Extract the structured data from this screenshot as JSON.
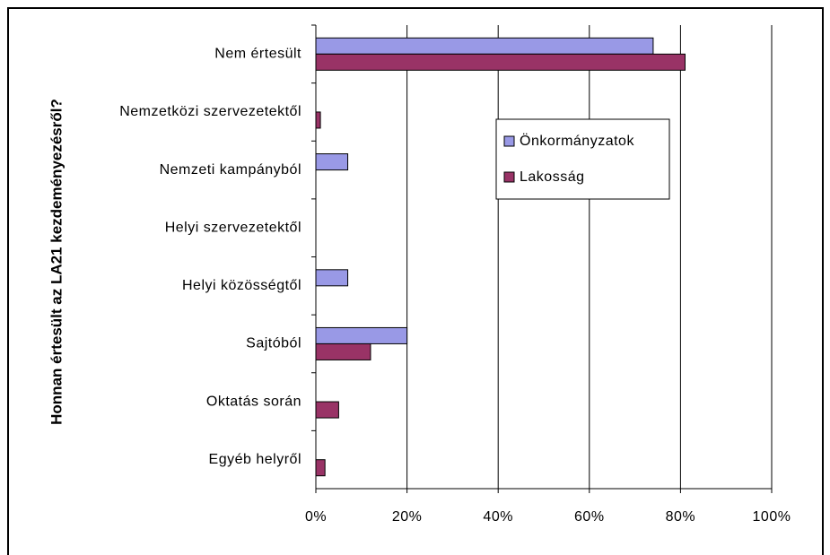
{
  "chart_data": {
    "type": "hbar",
    "y_label": "Honnan értesült az LA21 kezdeményezésről?",
    "categories": [
      "Nem értesült",
      "Nemzetközi szervezetektől",
      "Nemzeti kampányból",
      "Helyi szervezetektől",
      "Helyi közösségtől",
      "Sajtóból",
      "Oktatás során",
      "Egyéb helyről"
    ],
    "series": [
      {
        "name": "Önkormányzatok",
        "color": "#9999e6",
        "values": [
          74,
          0,
          7,
          0,
          7,
          20,
          0,
          0
        ]
      },
      {
        "name": "Lakosság",
        "color": "#993366",
        "values": [
          81,
          1,
          0,
          0,
          0,
          12,
          5,
          2
        ]
      }
    ],
    "xlim": [
      0,
      100
    ],
    "xticks": [
      {
        "value": 0,
        "label": "0%"
      },
      {
        "value": 20,
        "label": "20%"
      },
      {
        "value": 40,
        "label": "40%"
      },
      {
        "value": 60,
        "label": "60%"
      },
      {
        "value": 80,
        "label": "80%"
      },
      {
        "value": 100,
        "label": "100%"
      }
    ],
    "grid": true,
    "legend": "right"
  }
}
